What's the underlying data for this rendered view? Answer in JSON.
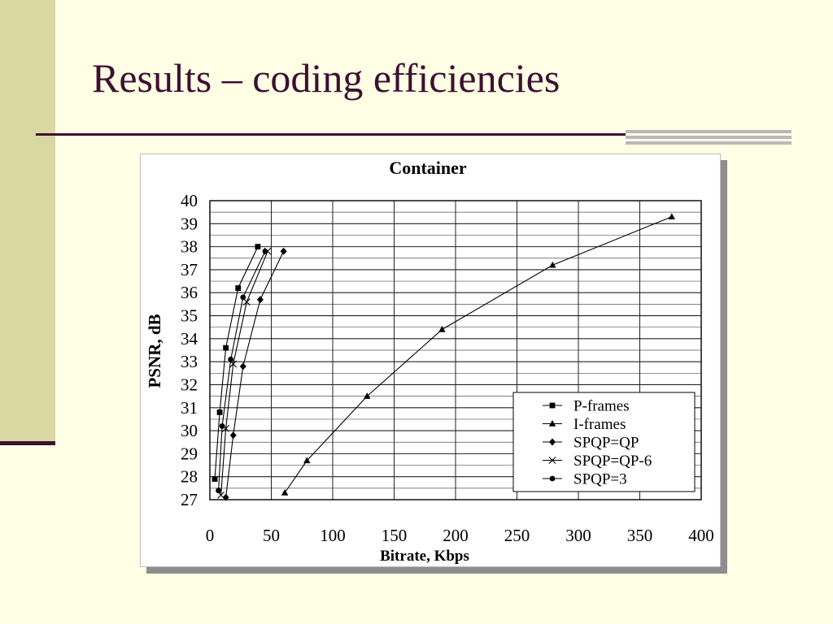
{
  "slide": {
    "title": "Results – coding efficiencies"
  },
  "colors": {
    "background": "#ffffe5",
    "accent_bar": "#d9d8a3",
    "title_text": "#3d1032"
  },
  "chart_data": {
    "type": "line",
    "title": "Container",
    "xlabel": "Bitrate, Kbps",
    "ylabel": "PSNR, dB",
    "xlim": [
      0,
      400
    ],
    "ylim": [
      27,
      40
    ],
    "xticks": [
      "0",
      "50",
      "100",
      "150",
      "200",
      "250",
      "300",
      "350",
      "400"
    ],
    "yticks": [
      "27",
      "28",
      "29",
      "30",
      "31",
      "32",
      "33",
      "34",
      "35",
      "36",
      "37",
      "38",
      "39",
      "40"
    ],
    "grid": true,
    "legend_position": "bottom-right",
    "series": [
      {
        "name": "P-frames",
        "marker": "square",
        "points": [
          [
            4,
            27.9
          ],
          [
            8,
            30.8
          ],
          [
            13,
            33.6
          ],
          [
            23,
            36.2
          ],
          [
            39,
            38.0
          ]
        ]
      },
      {
        "name": "I-frames",
        "marker": "triangle",
        "points": [
          [
            61,
            27.3
          ],
          [
            79,
            28.7
          ],
          [
            128,
            31.5
          ],
          [
            189,
            34.4
          ],
          [
            279,
            37.2
          ],
          [
            376,
            39.3
          ]
        ]
      },
      {
        "name": "SPQP=QP",
        "marker": "diamond",
        "points": [
          [
            13,
            27.1
          ],
          [
            19,
            29.8
          ],
          [
            27,
            32.8
          ],
          [
            41,
            35.7
          ],
          [
            60,
            37.8
          ]
        ]
      },
      {
        "name": "SPQP=QP-6",
        "marker": "x",
        "points": [
          [
            9,
            27.2
          ],
          [
            13,
            30.1
          ],
          [
            19,
            32.9
          ],
          [
            30,
            35.6
          ],
          [
            47,
            37.8
          ]
        ]
      },
      {
        "name": "SPQP=3",
        "marker": "circle",
        "points": [
          [
            7,
            27.4
          ],
          [
            10,
            30.2
          ],
          [
            17,
            33.1
          ],
          [
            27,
            35.8
          ],
          [
            45,
            37.8
          ]
        ]
      }
    ]
  }
}
